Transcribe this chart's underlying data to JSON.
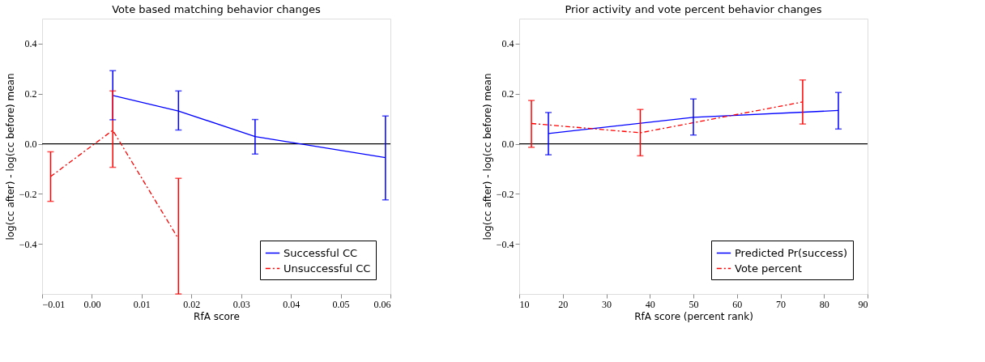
{
  "chart_data": [
    {
      "type": "line",
      "title": "Vote based matching behavior changes",
      "xlabel": "RfA score",
      "ylabel": "log(cc after) - log(cc before) mean",
      "xlim": [
        -0.01,
        0.06
      ],
      "xticks": [
        {
          "value": -0.01,
          "label": "−0.01"
        },
        {
          "value": 0,
          "label": "0.00"
        },
        {
          "value": 0.01,
          "label": "0.01"
        },
        {
          "value": 0.02,
          "label": "0.02"
        },
        {
          "value": 0.03,
          "label": "0.03"
        },
        {
          "value": 0.04,
          "label": "0.04"
        },
        {
          "value": 0.05,
          "label": "0.05"
        },
        {
          "value": 0.06,
          "label": "0.06"
        }
      ],
      "ylim": [
        -0.6,
        0.5
      ],
      "yticks": [
        {
          "value": -0.4,
          "label": "−0.4"
        },
        {
          "value": -0.2,
          "label": "−0.2"
        },
        {
          "value": 0,
          "label": "0.0"
        },
        {
          "value": 0.2,
          "label": "0.2"
        },
        {
          "value": 0.4,
          "label": "0.4"
        }
      ],
      "grid": false,
      "legend": "bottom right",
      "marker": "none",
      "ref_lines": [
        {
          "axis": "y",
          "value": 0,
          "color": "#000000"
        }
      ],
      "series": [
        {
          "name": "Successful CC",
          "color": "#0000ff",
          "line_style": "solid",
          "x": [
            0.0042,
            0.0174,
            0.0328,
            0.059
          ],
          "values": [
            0.193,
            0.131,
            0.029,
            -0.055
          ],
          "errors": [
            [
              0.096,
              0.292
            ],
            [
              0.055,
              0.211
            ],
            [
              -0.041,
              0.097
            ],
            [
              -0.224,
              0.111
            ]
          ]
        },
        {
          "name": "Unsuccessful CC",
          "color": "#ff0000",
          "line_style": "dashed",
          "x": [
            -0.0083,
            0.0042,
            0.0174
          ],
          "values": [
            -0.131,
            0.054,
            -0.38
          ],
          "errors": [
            [
              -0.23,
              -0.032
            ],
            [
              -0.094,
              0.211
            ],
            [
              -0.6,
              -0.138
            ]
          ]
        }
      ]
    },
    {
      "type": "line",
      "title": "Prior activity and vote percent behavior changes",
      "xlabel": "RfA score (percent rank)",
      "ylabel": "log(cc after) - log(cc before) mean",
      "xlim": [
        10,
        90
      ],
      "xticks": [
        10,
        20,
        30,
        40,
        50,
        60,
        70,
        80,
        90
      ],
      "ylim": [
        -0.6,
        0.5
      ],
      "yticks": [
        {
          "value": -0.4,
          "label": "−0.4"
        },
        {
          "value": -0.2,
          "label": "−0.2"
        },
        {
          "value": 0,
          "label": "0.0"
        },
        {
          "value": 0.2,
          "label": "0.2"
        },
        {
          "value": 0.4,
          "label": "0.4"
        }
      ],
      "grid": false,
      "legend": "bottom right",
      "marker": "none",
      "ref_lines": [
        {
          "axis": "y",
          "value": 0,
          "color": "#000000"
        }
      ],
      "series": [
        {
          "name": "Predicted Pr(success)",
          "color": "#0000ff",
          "line_style": "solid",
          "x": [
            16.7,
            50,
            83.3
          ],
          "values": [
            0.041,
            0.106,
            0.133
          ],
          "errors": [
            [
              -0.044,
              0.125
            ],
            [
              0.035,
              0.179
            ],
            [
              0.059,
              0.205
            ]
          ]
        },
        {
          "name": "Vote percent",
          "color": "#ff0000",
          "line_style": "dashed",
          "x": [
            12.8,
            37.8,
            75.1
          ],
          "values": [
            0.081,
            0.044,
            0.167
          ],
          "errors": [
            [
              -0.014,
              0.173
            ],
            [
              -0.048,
              0.137
            ],
            [
              0.079,
              0.255
            ]
          ]
        }
      ]
    }
  ]
}
